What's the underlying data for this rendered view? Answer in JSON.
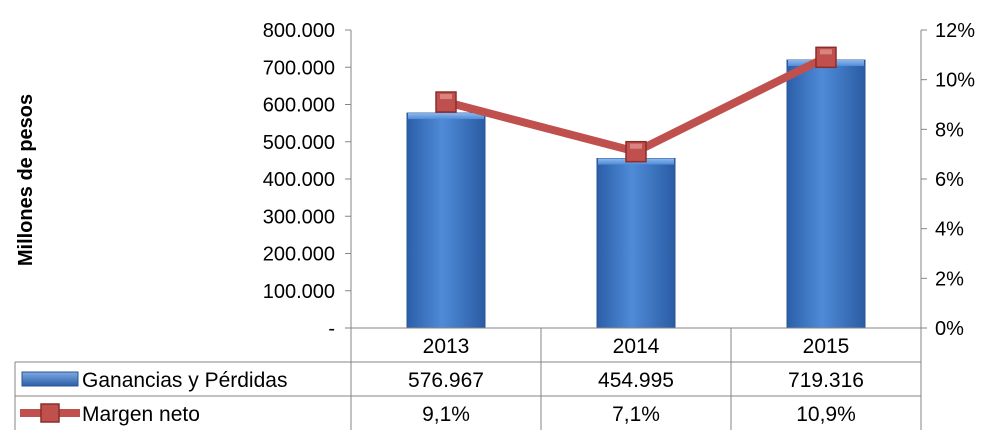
{
  "chart_data": {
    "type": "bar",
    "categories": [
      "2013",
      "2014",
      "2015"
    ],
    "ylabel": "Millones de pesos",
    "ylim": [
      0,
      800000
    ],
    "y2lim": [
      0,
      0.12
    ],
    "y_ticks": [
      "-",
      "100.000",
      "200.000",
      "300.000",
      "400.000",
      "500.000",
      "600.000",
      "700.000",
      "800.000"
    ],
    "y2_ticks": [
      "0%",
      "2%",
      "4%",
      "6%",
      "8%",
      "10%",
      "12%"
    ],
    "series": [
      {
        "name": "Ganancias y Pérdidas",
        "type": "bar",
        "axis": "left",
        "values": [
          576967,
          454995,
          719316
        ],
        "labels": [
          "576.967",
          "454.995",
          "719.316"
        ],
        "color": "#3A75C4"
      },
      {
        "name": "Margen neto",
        "type": "line",
        "axis": "right",
        "values": [
          0.091,
          0.071,
          0.109
        ],
        "labels": [
          "9,1%",
          "7,1%",
          "10,9%"
        ],
        "color": "#C0504D"
      }
    ],
    "grid": false,
    "legend": "data-table"
  }
}
